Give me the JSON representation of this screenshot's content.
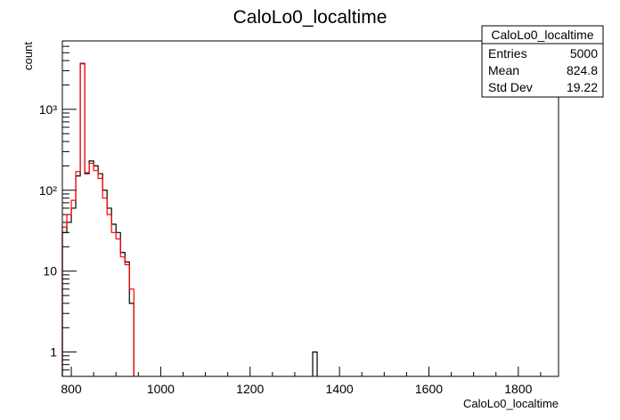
{
  "chart_data": {
    "type": "histogram",
    "title": "CaloLo0_localtime",
    "xlabel": "CaloLo0_localtime",
    "ylabel": "count",
    "xlim": [
      780,
      1890
    ],
    "ylim": [
      0.5,
      7000
    ],
    "yscale": "log",
    "grid": false,
    "bin_width": 10,
    "x_ticks": [
      800,
      1000,
      1200,
      1400,
      1600,
      1800
    ],
    "y_ticks": [
      {
        "value": 1,
        "label": "1"
      },
      {
        "value": 10,
        "label": "10"
      },
      {
        "value": 100,
        "label": "10²"
      },
      {
        "value": 1000,
        "label": "10³"
      }
    ],
    "series": [
      {
        "color": "#000000",
        "bins": [
          [
            780,
            30
          ],
          [
            790,
            40
          ],
          [
            800,
            60
          ],
          [
            810,
            150
          ],
          [
            820,
            3700
          ],
          [
            830,
            160
          ],
          [
            840,
            230
          ],
          [
            850,
            200
          ],
          [
            860,
            160
          ],
          [
            870,
            100
          ],
          [
            880,
            60
          ],
          [
            890,
            38
          ],
          [
            900,
            30
          ],
          [
            910,
            17
          ],
          [
            920,
            13
          ],
          [
            930,
            4
          ],
          [
            1340,
            1
          ]
        ]
      },
      {
        "color": "#ff0000",
        "bins": [
          [
            780,
            35
          ],
          [
            790,
            50
          ],
          [
            800,
            75
          ],
          [
            810,
            170
          ],
          [
            820,
            3650
          ],
          [
            830,
            165
          ],
          [
            840,
            215
          ],
          [
            850,
            175
          ],
          [
            860,
            140
          ],
          [
            870,
            80
          ],
          [
            880,
            50
          ],
          [
            890,
            30
          ],
          [
            900,
            25
          ],
          [
            910,
            15
          ],
          [
            920,
            12
          ],
          [
            930,
            6
          ]
        ]
      }
    ],
    "stats": {
      "title": "CaloLo0_localtime",
      "placement": "top-right",
      "rows": [
        {
          "label": "Entries",
          "value": "5000"
        },
        {
          "label": "Mean",
          "value": "824.8"
        },
        {
          "label": "Std Dev",
          "value": "19.22"
        }
      ]
    }
  }
}
